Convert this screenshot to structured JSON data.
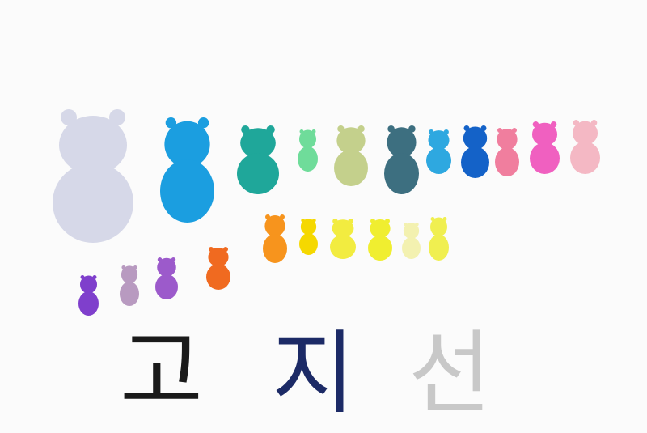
{
  "caption": {
    "letters": [
      "고",
      "지",
      "선"
    ]
  }
}
